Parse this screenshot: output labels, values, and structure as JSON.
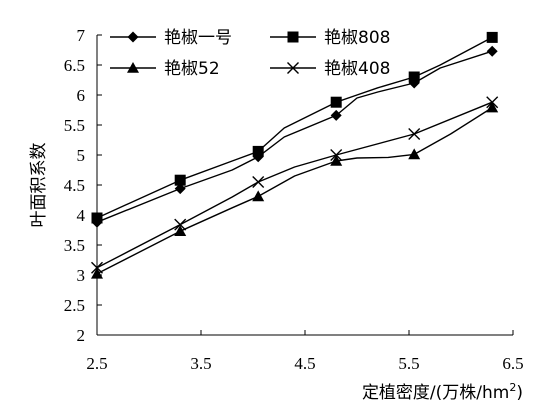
{
  "chart_data": {
    "type": "line",
    "xlabel": "定植密度/(万株/hm²)",
    "ylabel": "叶面积系数",
    "xlim": [
      2.5,
      6.5
    ],
    "ylim": [
      2,
      7
    ],
    "x_ticks": [
      2.5,
      3.5,
      4.5,
      5.5,
      6.5
    ],
    "x_tick_labels": [
      "2.5",
      "3.5",
      "4.5",
      "5.5",
      "6.5"
    ],
    "y_ticks": [
      2,
      2.5,
      3,
      3.5,
      4,
      4.5,
      5,
      5.5,
      6,
      6.5,
      7
    ],
    "y_tick_labels": [
      "2",
      "2.5",
      "3",
      "3.5",
      "4",
      "4.5",
      "5",
      "5.5",
      "6",
      "6.5",
      "7"
    ],
    "grid": false,
    "legend_position": "top-left, inside plot",
    "series": [
      {
        "name": "艳椒一号",
        "marker": "diamond",
        "color": "#000000",
        "points": [
          [
            2.5,
            3.88
          ],
          [
            3.3,
            4.44
          ],
          [
            4.05,
            4.97
          ],
          [
            4.8,
            5.66
          ],
          [
            5.55,
            6.2
          ],
          [
            6.3,
            6.73
          ]
        ],
        "path": [
          [
            2.5,
            3.88
          ],
          [
            3.3,
            4.44
          ],
          [
            3.8,
            4.75
          ],
          [
            4.05,
            4.97
          ],
          [
            4.3,
            5.3
          ],
          [
            4.8,
            5.66
          ],
          [
            5.0,
            5.95
          ],
          [
            5.2,
            6.05
          ],
          [
            5.55,
            6.2
          ],
          [
            5.8,
            6.45
          ],
          [
            6.3,
            6.73
          ]
        ]
      },
      {
        "name": "艳椒808",
        "marker": "square",
        "color": "#000000",
        "points": [
          [
            2.5,
            3.95
          ],
          [
            3.3,
            4.58
          ],
          [
            4.05,
            5.06
          ],
          [
            4.8,
            5.88
          ],
          [
            5.55,
            6.3
          ],
          [
            6.3,
            6.96
          ]
        ],
        "path": [
          [
            2.5,
            3.95
          ],
          [
            3.3,
            4.58
          ],
          [
            3.8,
            4.9
          ],
          [
            4.05,
            5.06
          ],
          [
            4.3,
            5.45
          ],
          [
            4.8,
            5.88
          ],
          [
            5.0,
            6.0
          ],
          [
            5.2,
            6.12
          ],
          [
            5.55,
            6.3
          ],
          [
            5.8,
            6.5
          ],
          [
            6.3,
            6.96
          ]
        ]
      },
      {
        "name": "艳椒52",
        "marker": "triangle",
        "color": "#000000",
        "points": [
          [
            2.5,
            3.02
          ],
          [
            3.3,
            3.73
          ],
          [
            4.05,
            4.31
          ],
          [
            4.8,
            4.9
          ],
          [
            5.55,
            5.01
          ],
          [
            6.3,
            5.79
          ]
        ],
        "path": [
          [
            2.5,
            3.02
          ],
          [
            3.3,
            3.73
          ],
          [
            3.8,
            4.12
          ],
          [
            4.05,
            4.31
          ],
          [
            4.4,
            4.65
          ],
          [
            4.8,
            4.9
          ],
          [
            5.0,
            4.95
          ],
          [
            5.3,
            4.96
          ],
          [
            5.55,
            5.01
          ],
          [
            5.9,
            5.35
          ],
          [
            6.3,
            5.79
          ]
        ]
      },
      {
        "name": "艳椒408",
        "marker": "x",
        "color": "#000000",
        "points": [
          [
            2.5,
            3.12
          ],
          [
            3.3,
            3.84
          ],
          [
            4.05,
            4.55
          ],
          [
            4.8,
            5.0
          ],
          [
            5.55,
            5.35
          ],
          [
            6.3,
            5.88
          ]
        ],
        "path": [
          [
            2.5,
            3.12
          ],
          [
            3.3,
            3.84
          ],
          [
            3.8,
            4.3
          ],
          [
            4.05,
            4.55
          ],
          [
            4.4,
            4.8
          ],
          [
            4.8,
            5.0
          ],
          [
            5.55,
            5.35
          ],
          [
            6.3,
            5.88
          ]
        ]
      }
    ]
  }
}
